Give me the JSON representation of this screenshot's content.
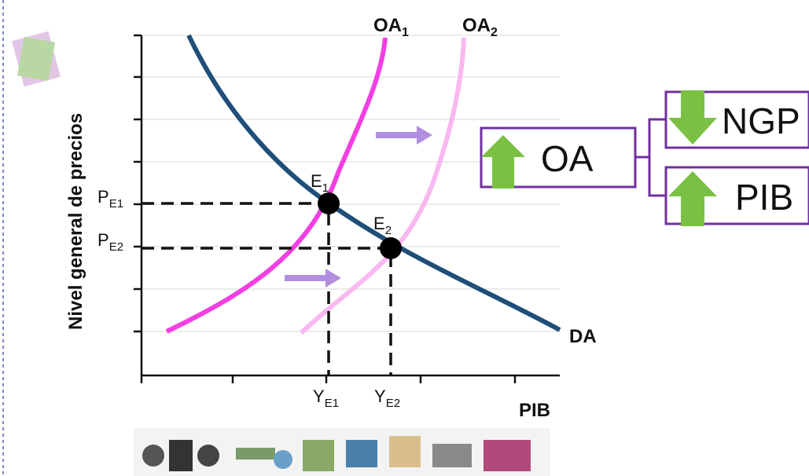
{
  "axis": {
    "y_label": "Nivel general de precios",
    "x_label": "PIB"
  },
  "curves": [
    {
      "label": "OA",
      "sub": "1"
    },
    {
      "label": "OA",
      "sub": "2"
    },
    {
      "label": "DA"
    }
  ],
  "points": [
    {
      "label": "E",
      "sub": "1"
    },
    {
      "label": "E",
      "sub": "2"
    }
  ],
  "price_labels": [
    {
      "label": "P",
      "sub": "E1"
    },
    {
      "label": "P",
      "sub": "E2"
    }
  ],
  "quantity_labels": [
    {
      "label": "Y",
      "sub": "E1"
    },
    {
      "label": "Y",
      "sub": "E2"
    }
  ],
  "summary": {
    "cause": "OA",
    "effects": [
      "NGP",
      "PIB"
    ]
  }
}
